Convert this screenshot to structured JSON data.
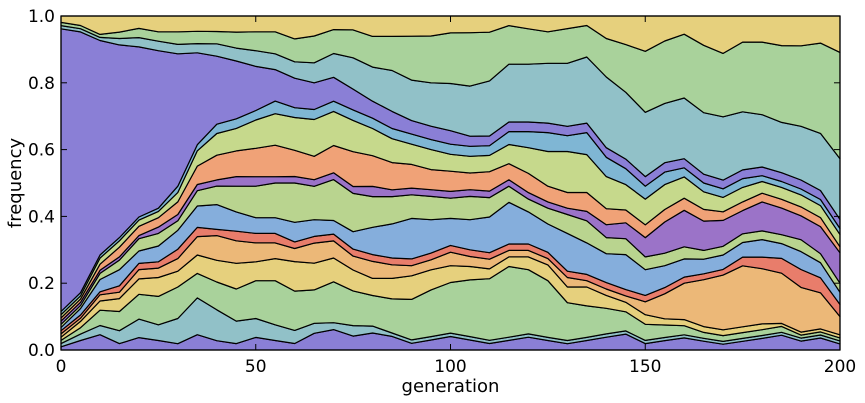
{
  "chart_data": {
    "type": "area",
    "stacked": true,
    "normalized": true,
    "xlabel": "generation",
    "ylabel": "frequency",
    "xlim": [
      0,
      200
    ],
    "ylim": [
      0.0,
      1.0
    ],
    "xticks": [
      0,
      50,
      100,
      150,
      200
    ],
    "xtick_labels": [
      "0",
      "50",
      "100",
      "150",
      "200"
    ],
    "yticks": [
      0.0,
      0.2,
      0.4,
      0.6,
      0.8,
      1.0
    ],
    "ytick_labels": [
      "0.0",
      "0.2",
      "0.4",
      "0.6",
      "0.8",
      "1.0"
    ],
    "grid": false,
    "legend": "none",
    "edge_color": "#000000",
    "palette": [
      "#8a7fd6",
      "#91c1c8",
      "#a9d29b",
      "#e6d07d",
      "#ecb878",
      "#e87d6b",
      "#85aedc",
      "#b9d48f",
      "#9b73c8",
      "#f0a277",
      "#c6d98c",
      "#7fb6d4"
    ],
    "x": [
      0,
      5,
      10,
      15,
      20,
      25,
      30,
      35,
      40,
      45,
      50,
      55,
      60,
      65,
      70,
      75,
      80,
      85,
      90,
      95,
      100,
      105,
      110,
      115,
      120,
      125,
      130,
      135,
      140,
      145,
      150,
      155,
      160,
      165,
      170,
      175,
      180,
      185,
      190,
      195,
      200
    ],
    "series": [
      {
        "values": [
          0.01,
          0.03,
          0.05,
          0.02,
          0.04,
          0.03,
          0.02,
          0.05,
          0.03,
          0.02,
          0.04,
          0.03,
          0.02,
          0.05,
          0.06,
          0.04,
          0.05,
          0.04,
          0.02,
          0.03,
          0.04,
          0.03,
          0.02,
          0.03,
          0.04,
          0.03,
          0.02,
          0.03,
          0.04,
          0.05,
          0.02,
          0.03,
          0.04,
          0.03,
          0.02,
          0.03,
          0.04,
          0.05,
          0.03,
          0.04,
          0.02
        ]
      },
      {
        "values": [
          0.01,
          0.02,
          0.03,
          0.04,
          0.06,
          0.05,
          0.08,
          0.12,
          0.1,
          0.07,
          0.06,
          0.05,
          0.04,
          0.03,
          0.02,
          0.03,
          0.02,
          0.01,
          0.01,
          0.01,
          0.01,
          0.01,
          0.01,
          0.01,
          0.01,
          0.01,
          0.01,
          0.01,
          0.01,
          0.01,
          0.01,
          0.01,
          0.01,
          0.01,
          0.01,
          0.01,
          0.01,
          0.01,
          0.01,
          0.01,
          0.01
        ]
      },
      {
        "values": [
          0.01,
          0.02,
          0.05,
          0.06,
          0.08,
          0.09,
          0.1,
          0.08,
          0.09,
          0.1,
          0.12,
          0.14,
          0.12,
          0.1,
          0.12,
          0.1,
          0.09,
          0.1,
          0.12,
          0.14,
          0.15,
          0.17,
          0.19,
          0.22,
          0.2,
          0.18,
          0.12,
          0.1,
          0.08,
          0.06,
          0.05,
          0.04,
          0.03,
          0.02,
          0.02,
          0.02,
          0.02,
          0.02,
          0.01,
          0.01,
          0.01
        ]
      },
      {
        "values": [
          0.01,
          0.02,
          0.03,
          0.04,
          0.05,
          0.06,
          0.05,
          0.06,
          0.07,
          0.08,
          0.06,
          0.07,
          0.09,
          0.08,
          0.07,
          0.06,
          0.05,
          0.06,
          0.07,
          0.06,
          0.05,
          0.04,
          0.03,
          0.03,
          0.04,
          0.05,
          0.05,
          0.06,
          0.04,
          0.03,
          0.03,
          0.02,
          0.02,
          0.02,
          0.02,
          0.02,
          0.02,
          0.01,
          0.01,
          0.01,
          0.01
        ]
      },
      {
        "values": [
          0.01,
          0.01,
          0.02,
          0.02,
          0.03,
          0.03,
          0.04,
          0.06,
          0.08,
          0.07,
          0.06,
          0.05,
          0.04,
          0.06,
          0.05,
          0.04,
          0.05,
          0.04,
          0.03,
          0.03,
          0.04,
          0.03,
          0.03,
          0.02,
          0.02,
          0.02,
          0.03,
          0.02,
          0.02,
          0.02,
          0.04,
          0.08,
          0.12,
          0.16,
          0.19,
          0.21,
          0.19,
          0.17,
          0.15,
          0.12,
          0.06
        ]
      },
      {
        "values": [
          0.01,
          0.01,
          0.01,
          0.02,
          0.02,
          0.02,
          0.03,
          0.03,
          0.02,
          0.03,
          0.03,
          0.03,
          0.02,
          0.02,
          0.02,
          0.02,
          0.02,
          0.02,
          0.02,
          0.02,
          0.02,
          0.02,
          0.02,
          0.02,
          0.02,
          0.02,
          0.02,
          0.02,
          0.02,
          0.02,
          0.02,
          0.02,
          0.02,
          0.02,
          0.02,
          0.03,
          0.04,
          0.05,
          0.06,
          0.05,
          0.04
        ]
      },
      {
        "values": [
          0.01,
          0.02,
          0.04,
          0.05,
          0.04,
          0.05,
          0.06,
          0.07,
          0.08,
          0.06,
          0.05,
          0.05,
          0.06,
          0.05,
          0.04,
          0.05,
          0.08,
          0.1,
          0.12,
          0.1,
          0.08,
          0.09,
          0.11,
          0.13,
          0.1,
          0.09,
          0.12,
          0.1,
          0.09,
          0.11,
          0.08,
          0.07,
          0.06,
          0.05,
          0.05,
          0.05,
          0.06,
          0.05,
          0.06,
          0.05,
          0.04
        ]
      },
      {
        "values": [
          0.01,
          0.01,
          0.02,
          0.03,
          0.04,
          0.04,
          0.03,
          0.05,
          0.06,
          0.08,
          0.1,
          0.11,
          0.12,
          0.1,
          0.12,
          0.11,
          0.09,
          0.08,
          0.07,
          0.07,
          0.06,
          0.07,
          0.06,
          0.05,
          0.04,
          0.05,
          0.06,
          0.07,
          0.05,
          0.05,
          0.04,
          0.04,
          0.04,
          0.03,
          0.03,
          0.03,
          0.03,
          0.03,
          0.04,
          0.03,
          0.03
        ]
      },
      {
        "values": [
          0.01,
          0.01,
          0.01,
          0.01,
          0.01,
          0.02,
          0.02,
          0.02,
          0.02,
          0.03,
          0.03,
          0.02,
          0.02,
          0.02,
          0.02,
          0.02,
          0.03,
          0.02,
          0.02,
          0.02,
          0.02,
          0.02,
          0.02,
          0.02,
          0.02,
          0.02,
          0.02,
          0.03,
          0.04,
          0.05,
          0.06,
          0.1,
          0.12,
          0.1,
          0.09,
          0.08,
          0.1,
          0.09,
          0.08,
          0.09,
          0.1
        ]
      },
      {
        "values": [
          0.01,
          0.01,
          0.02,
          0.03,
          0.03,
          0.03,
          0.04,
          0.06,
          0.08,
          0.08,
          0.09,
          0.1,
          0.08,
          0.07,
          0.08,
          0.1,
          0.09,
          0.08,
          0.07,
          0.06,
          0.06,
          0.05,
          0.06,
          0.05,
          0.06,
          0.05,
          0.05,
          0.06,
          0.05,
          0.04,
          0.04,
          0.04,
          0.04,
          0.04,
          0.03,
          0.03,
          0.03,
          0.03,
          0.03,
          0.03,
          0.02
        ]
      },
      {
        "values": [
          0.01,
          0.01,
          0.02,
          0.02,
          0.02,
          0.02,
          0.03,
          0.05,
          0.07,
          0.07,
          0.09,
          0.1,
          0.1,
          0.11,
          0.1,
          0.09,
          0.08,
          0.07,
          0.06,
          0.06,
          0.05,
          0.05,
          0.05,
          0.06,
          0.08,
          0.11,
          0.13,
          0.12,
          0.1,
          0.08,
          0.08,
          0.08,
          0.07,
          0.06,
          0.05,
          0.05,
          0.04,
          0.04,
          0.04,
          0.04,
          0.04
        ]
      },
      {
        "values": [
          0.01,
          0.01,
          0.01,
          0.01,
          0.01,
          0.01,
          0.02,
          0.02,
          0.03,
          0.03,
          0.03,
          0.04,
          0.03,
          0.03,
          0.03,
          0.03,
          0.03,
          0.03,
          0.03,
          0.03,
          0.03,
          0.03,
          0.03,
          0.04,
          0.05,
          0.06,
          0.05,
          0.07,
          0.06,
          0.05,
          0.04,
          0.04,
          0.03,
          0.03,
          0.03,
          0.03,
          0.02,
          0.02,
          0.02,
          0.02,
          0.02
        ]
      },
      {
        "values": [
          0.88,
          0.82,
          0.7,
          0.6,
          0.55,
          0.5,
          0.42,
          0.3,
          0.22,
          0.18,
          0.14,
          0.1,
          0.09,
          0.08,
          0.07,
          0.06,
          0.05,
          0.05,
          0.04,
          0.04,
          0.04,
          0.03,
          0.03,
          0.03,
          0.03,
          0.03,
          0.03,
          0.03,
          0.03,
          0.03,
          0.03,
          0.03,
          0.03,
          0.03,
          0.03,
          0.03,
          0.03,
          0.03,
          0.03,
          0.03,
          0.03
        ]
      },
      {
        "values": [
          0.01,
          0.01,
          0.01,
          0.02,
          0.03,
          0.03,
          0.03,
          0.03,
          0.04,
          0.04,
          0.05,
          0.05,
          0.05,
          0.06,
          0.07,
          0.09,
          0.1,
          0.12,
          0.12,
          0.13,
          0.14,
          0.15,
          0.17,
          0.18,
          0.18,
          0.19,
          0.2,
          0.21,
          0.22,
          0.21,
          0.2,
          0.19,
          0.2,
          0.21,
          0.22,
          0.2,
          0.18,
          0.17,
          0.18,
          0.19,
          0.2
        ]
      },
      {
        "values": [
          0.01,
          0.01,
          0.01,
          0.02,
          0.03,
          0.03,
          0.04,
          0.04,
          0.04,
          0.05,
          0.06,
          0.07,
          0.07,
          0.08,
          0.07,
          0.08,
          0.09,
          0.1,
          0.13,
          0.14,
          0.15,
          0.16,
          0.15,
          0.12,
          0.11,
          0.1,
          0.11,
          0.1,
          0.12,
          0.15,
          0.19,
          0.2,
          0.21,
          0.23,
          0.22,
          0.24,
          0.25,
          0.26,
          0.27,
          0.3,
          0.35
        ]
      },
      {
        "values": [
          0.02,
          0.03,
          0.06,
          0.05,
          0.04,
          0.05,
          0.05,
          0.05,
          0.05,
          0.05,
          0.05,
          0.05,
          0.07,
          0.06,
          0.04,
          0.04,
          0.06,
          0.06,
          0.06,
          0.06,
          0.05,
          0.05,
          0.05,
          0.03,
          0.04,
          0.05,
          0.04,
          0.03,
          0.07,
          0.09,
          0.11,
          0.08,
          0.06,
          0.1,
          0.13,
          0.09,
          0.09,
          0.1,
          0.1,
          0.09,
          0.12
        ]
      }
    ]
  }
}
